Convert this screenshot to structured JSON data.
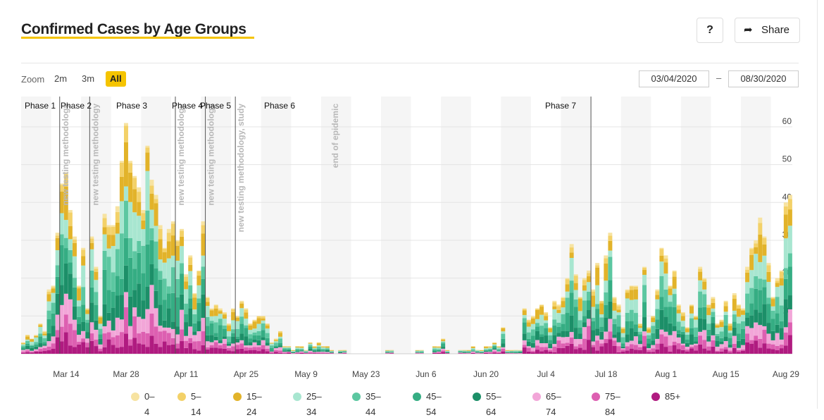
{
  "header": {
    "title": "Confirmed Cases by Age Groups",
    "help_label": "?",
    "share_label": "Share",
    "share_icon": "share-arrow-icon"
  },
  "controls": {
    "zoom_label": "Zoom",
    "zoom_options": [
      "2m",
      "3m",
      "All"
    ],
    "zoom_selected": "All",
    "date_from": "03/04/2020",
    "date_to": "08/30/2020",
    "date_separator": "–"
  },
  "colors": {
    "accent": "#f5c400",
    "series": [
      "#f7e3a1",
      "#f3d168",
      "#e2b32a",
      "#a8e6d0",
      "#5cc7a1",
      "#35ad83",
      "#1c8f68",
      "#f2a6d8",
      "#dd5fb1",
      "#b01b80"
    ]
  },
  "chart_data": {
    "type": "bar",
    "stacked": true,
    "x_type": "date",
    "x_range": [
      "2020-03-04",
      "2020-08-30"
    ],
    "ylim": [
      0,
      68
    ],
    "yticks": [
      10,
      20,
      30,
      40,
      50,
      60
    ],
    "xticks": [
      "Mar 14",
      "Mar 28",
      "Apr 11",
      "Apr 25",
      "May 9",
      "May 23",
      "Jun 6",
      "Jun 20",
      "Jul 4",
      "Jul 18",
      "Aug 1",
      "Aug 15",
      "Aug 29"
    ],
    "xtick_dates": [
      "2020-03-14",
      "2020-03-28",
      "2020-04-11",
      "2020-04-25",
      "2020-05-09",
      "2020-05-23",
      "2020-06-06",
      "2020-06-20",
      "2020-07-04",
      "2020-07-18",
      "2020-08-01",
      "2020-08-15",
      "2020-08-29"
    ],
    "grid": true,
    "legend_position": "bottom",
    "series_names": [
      "0–4",
      "5–14",
      "15–24",
      "25–34",
      "35–44",
      "45–54",
      "55–64",
      "65–74",
      "75–84",
      "85+"
    ],
    "daily_totals": [
      [
        "2020-03-04",
        3
      ],
      [
        "2020-03-05",
        5
      ],
      [
        "2020-03-06",
        4
      ],
      [
        "2020-03-07",
        5
      ],
      [
        "2020-03-08",
        8
      ],
      [
        "2020-03-09",
        6
      ],
      [
        "2020-03-10",
        17
      ],
      [
        "2020-03-11",
        18
      ],
      [
        "2020-03-12",
        32
      ],
      [
        "2020-03-13",
        45
      ],
      [
        "2020-03-14",
        48
      ],
      [
        "2020-03-15",
        38
      ],
      [
        "2020-03-16",
        31
      ],
      [
        "2020-03-17",
        18
      ],
      [
        "2020-03-18",
        28
      ],
      [
        "2020-03-19",
        12
      ],
      [
        "2020-03-20",
        31
      ],
      [
        "2020-03-21",
        23
      ],
      [
        "2020-03-22",
        10
      ],
      [
        "2020-03-23",
        37
      ],
      [
        "2020-03-24",
        34
      ],
      [
        "2020-03-25",
        34
      ],
      [
        "2020-03-26",
        39
      ],
      [
        "2020-03-27",
        51
      ],
      [
        "2020-03-28",
        61
      ],
      [
        "2020-03-29",
        51
      ],
      [
        "2020-03-30",
        47
      ],
      [
        "2020-03-31",
        44
      ],
      [
        "2020-04-01",
        38
      ],
      [
        "2020-04-02",
        55
      ],
      [
        "2020-04-03",
        46
      ],
      [
        "2020-04-04",
        42
      ],
      [
        "2020-04-05",
        34
      ],
      [
        "2020-04-06",
        28
      ],
      [
        "2020-04-07",
        33
      ],
      [
        "2020-04-08",
        35
      ],
      [
        "2020-04-09",
        30
      ],
      [
        "2020-04-10",
        33
      ],
      [
        "2020-04-11",
        21
      ],
      [
        "2020-04-12",
        26
      ],
      [
        "2020-04-13",
        16
      ],
      [
        "2020-04-14",
        22
      ],
      [
        "2020-04-15",
        35
      ],
      [
        "2020-04-16",
        15
      ],
      [
        "2020-04-17",
        12
      ],
      [
        "2020-04-18",
        13
      ],
      [
        "2020-04-19",
        12
      ],
      [
        "2020-04-20",
        11
      ],
      [
        "2020-04-21",
        8
      ],
      [
        "2020-04-22",
        12
      ],
      [
        "2020-04-23",
        10
      ],
      [
        "2020-04-24",
        14
      ],
      [
        "2020-04-25",
        12
      ],
      [
        "2020-04-26",
        8
      ],
      [
        "2020-04-27",
        9
      ],
      [
        "2020-04-28",
        10
      ],
      [
        "2020-04-29",
        10
      ],
      [
        "2020-04-30",
        8
      ],
      [
        "2020-05-01",
        3
      ],
      [
        "2020-05-02",
        4
      ],
      [
        "2020-05-03",
        6
      ],
      [
        "2020-05-04",
        2
      ],
      [
        "2020-05-05",
        2
      ],
      [
        "2020-05-06",
        1
      ],
      [
        "2020-05-07",
        2
      ],
      [
        "2020-05-08",
        2
      ],
      [
        "2020-05-09",
        1
      ],
      [
        "2020-05-10",
        3
      ],
      [
        "2020-05-11",
        2
      ],
      [
        "2020-05-12",
        3
      ],
      [
        "2020-05-13",
        2
      ],
      [
        "2020-05-14",
        2
      ],
      [
        "2020-05-15",
        1
      ],
      [
        "2020-05-16",
        0
      ],
      [
        "2020-05-17",
        1
      ],
      [
        "2020-05-18",
        1
      ],
      [
        "2020-05-19",
        0
      ],
      [
        "2020-05-20",
        0
      ],
      [
        "2020-05-21",
        0
      ],
      [
        "2020-05-22",
        0
      ],
      [
        "2020-05-23",
        0
      ],
      [
        "2020-05-24",
        0
      ],
      [
        "2020-05-25",
        0
      ],
      [
        "2020-05-26",
        0
      ],
      [
        "2020-05-27",
        0
      ],
      [
        "2020-05-28",
        1
      ],
      [
        "2020-05-29",
        1
      ],
      [
        "2020-05-30",
        0
      ],
      [
        "2020-05-31",
        0
      ],
      [
        "2020-06-01",
        0
      ],
      [
        "2020-06-02",
        0
      ],
      [
        "2020-06-03",
        0
      ],
      [
        "2020-06-04",
        1
      ],
      [
        "2020-06-05",
        1
      ],
      [
        "2020-06-06",
        0
      ],
      [
        "2020-06-07",
        0
      ],
      [
        "2020-06-08",
        2
      ],
      [
        "2020-06-09",
        2
      ],
      [
        "2020-06-10",
        4
      ],
      [
        "2020-06-11",
        1
      ],
      [
        "2020-06-12",
        0
      ],
      [
        "2020-06-13",
        0
      ],
      [
        "2020-06-14",
        1
      ],
      [
        "2020-06-15",
        1
      ],
      [
        "2020-06-16",
        1
      ],
      [
        "2020-06-17",
        2
      ],
      [
        "2020-06-18",
        1
      ],
      [
        "2020-06-19",
        1
      ],
      [
        "2020-06-20",
        2
      ],
      [
        "2020-06-21",
        2
      ],
      [
        "2020-06-22",
        3
      ],
      [
        "2020-06-23",
        2
      ],
      [
        "2020-06-24",
        7
      ],
      [
        "2020-06-25",
        1
      ],
      [
        "2020-06-26",
        1
      ],
      [
        "2020-06-27",
        1
      ],
      [
        "2020-06-28",
        1
      ],
      [
        "2020-06-29",
        12
      ],
      [
        "2020-06-30",
        9
      ],
      [
        "2020-07-01",
        10
      ],
      [
        "2020-07-02",
        12
      ],
      [
        "2020-07-03",
        13
      ],
      [
        "2020-07-04",
        11
      ],
      [
        "2020-07-05",
        7
      ],
      [
        "2020-07-06",
        14
      ],
      [
        "2020-07-07",
        13
      ],
      [
        "2020-07-08",
        15
      ],
      [
        "2020-07-09",
        20
      ],
      [
        "2020-07-10",
        29
      ],
      [
        "2020-07-11",
        21
      ],
      [
        "2020-07-12",
        15
      ],
      [
        "2020-07-13",
        20
      ],
      [
        "2020-07-14",
        22
      ],
      [
        "2020-07-15",
        17
      ],
      [
        "2020-07-16",
        24
      ],
      [
        "2020-07-17",
        14
      ],
      [
        "2020-07-18",
        26
      ],
      [
        "2020-07-19",
        32
      ],
      [
        "2020-07-20",
        15
      ],
      [
        "2020-07-21",
        13
      ],
      [
        "2020-07-22",
        7
      ],
      [
        "2020-07-23",
        17
      ],
      [
        "2020-07-24",
        18
      ],
      [
        "2020-07-25",
        18
      ],
      [
        "2020-07-26",
        8
      ],
      [
        "2020-07-27",
        23
      ],
      [
        "2020-07-28",
        7
      ],
      [
        "2020-07-29",
        10
      ],
      [
        "2020-07-30",
        17
      ],
      [
        "2020-07-31",
        28
      ],
      [
        "2020-08-01",
        26
      ],
      [
        "2020-08-02",
        18
      ],
      [
        "2020-08-03",
        22
      ],
      [
        "2020-08-04",
        13
      ],
      [
        "2020-08-05",
        11
      ],
      [
        "2020-08-06",
        7
      ],
      [
        "2020-08-07",
        13
      ],
      [
        "2020-08-08",
        10
      ],
      [
        "2020-08-09",
        23
      ],
      [
        "2020-08-10",
        20
      ],
      [
        "2020-08-11",
        13
      ],
      [
        "2020-08-12",
        15
      ],
      [
        "2020-08-13",
        8
      ],
      [
        "2020-08-14",
        9
      ],
      [
        "2020-08-15",
        14
      ],
      [
        "2020-08-16",
        8
      ],
      [
        "2020-08-17",
        16
      ],
      [
        "2020-08-18",
        13
      ],
      [
        "2020-08-19",
        12
      ],
      [
        "2020-08-20",
        23
      ],
      [
        "2020-08-21",
        28
      ],
      [
        "2020-08-22",
        30
      ],
      [
        "2020-08-23",
        36
      ],
      [
        "2020-08-24",
        31
      ],
      [
        "2020-08-25",
        24
      ],
      [
        "2020-08-26",
        15
      ],
      [
        "2020-08-27",
        20
      ],
      [
        "2020-08-28",
        22
      ],
      [
        "2020-08-29",
        40
      ],
      [
        "2020-08-30",
        42
      ]
    ],
    "phases": [
      {
        "label": "Phase 1",
        "date": "2020-03-04"
      },
      {
        "label": "Phase 2",
        "date": "2020-03-13"
      },
      {
        "label": "Phase 3",
        "date": "2020-03-20"
      },
      {
        "label": "Phase 4",
        "date": "2020-04-09"
      },
      {
        "label": "Phase 5",
        "date": "2020-04-16"
      },
      {
        "label": "Phase 6",
        "date": "2020-04-23"
      },
      {
        "label": "Phase 7",
        "date": "2020-07-15"
      }
    ],
    "annotations": [
      {
        "text": "new testing methodology",
        "date": "2020-03-13"
      },
      {
        "text": "new testing methodology",
        "date": "2020-03-20"
      },
      {
        "text": "new testing methodology",
        "date": "2020-04-09"
      },
      {
        "text": "new testing methodology",
        "date": "2020-04-16"
      },
      {
        "text": "new testing methodology, study",
        "date": "2020-04-23"
      },
      {
        "text": "end of epidemic",
        "date": "2020-05-15"
      }
    ]
  }
}
